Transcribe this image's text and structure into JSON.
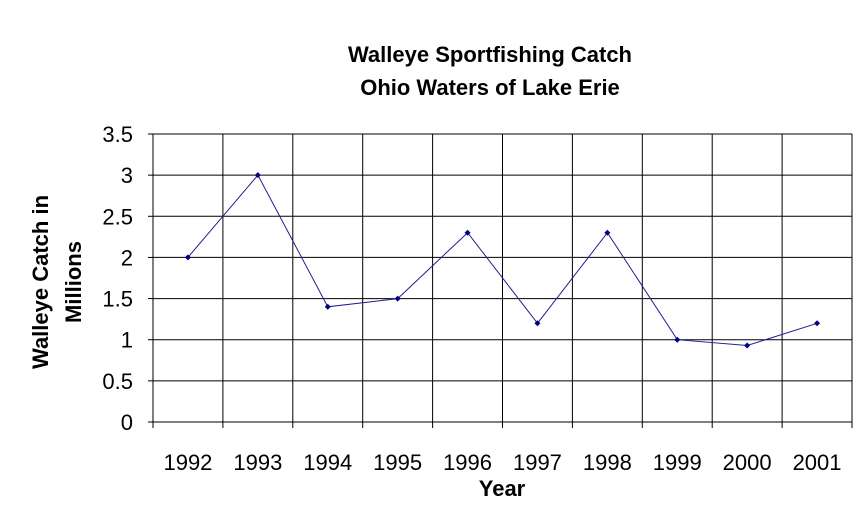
{
  "chart_data": {
    "type": "line",
    "title": [
      "Walleye Sportfishing Catch",
      "Ohio Waters of Lake Erie"
    ],
    "xlabel": "Year",
    "ylabel": [
      "Walleye Catch in",
      "Millions"
    ],
    "categories": [
      "1992",
      "1993",
      "1994",
      "1995",
      "1996",
      "1997",
      "1998",
      "1999",
      "2000",
      "2001"
    ],
    "values": [
      2.0,
      3.0,
      1.4,
      1.5,
      2.3,
      1.2,
      2.3,
      1.0,
      0.93,
      1.2
    ],
    "yticks": [
      "0",
      "0.5",
      "1",
      "1.5",
      "2",
      "2.5",
      "3",
      "3.5"
    ],
    "ylim": [
      0,
      3.5
    ],
    "grid": true,
    "legend": "none",
    "colors": {
      "line": "#1f1f8f",
      "marker": "#000080",
      "grid": "#000000"
    }
  }
}
